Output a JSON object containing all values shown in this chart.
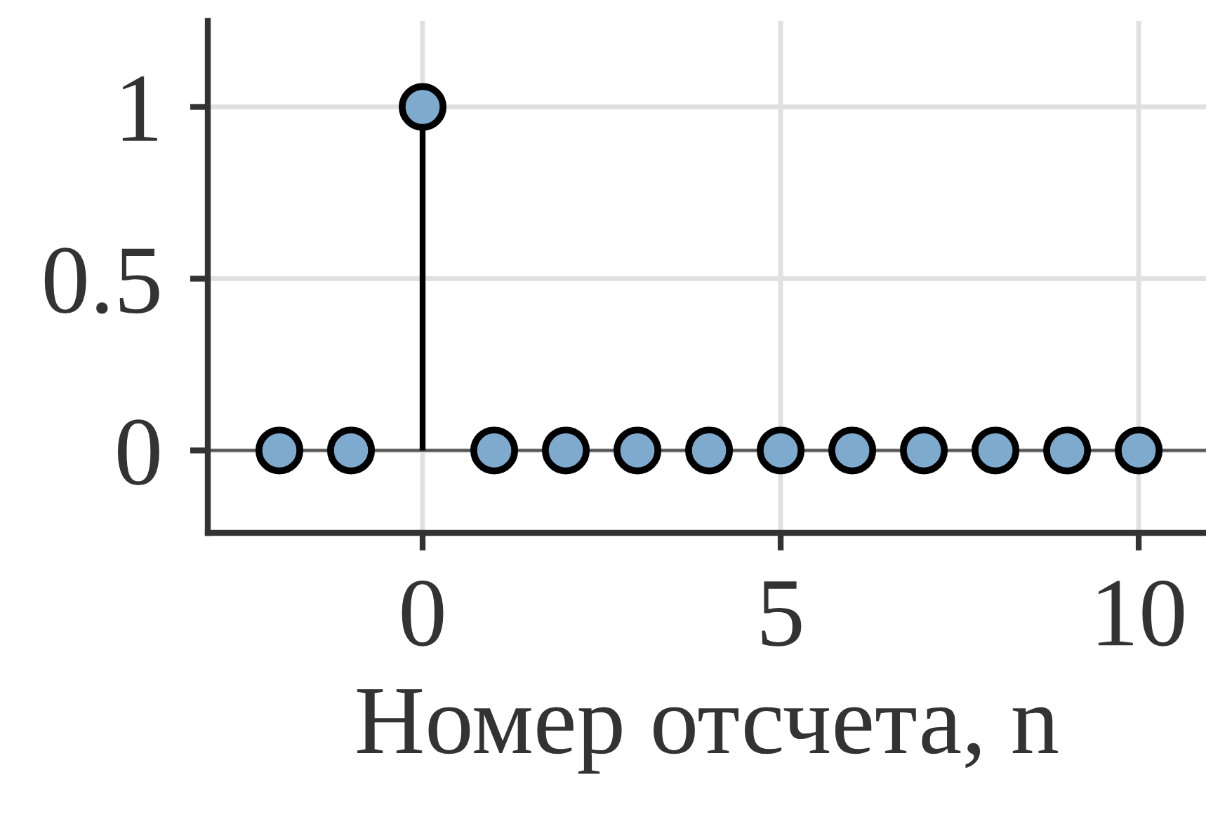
{
  "chart_data": {
    "type": "lollipop",
    "xlabel": "Номер отсчета, n",
    "x": [
      -2,
      -1,
      0,
      1,
      2,
      3,
      4,
      5,
      6,
      7,
      8,
      9,
      10
    ],
    "series": [
      {
        "color": "#7eaace",
        "values": [
          0,
          0,
          1,
          0,
          0,
          0,
          0,
          0,
          0,
          0,
          0,
          0,
          0
        ]
      }
    ],
    "xlim": [
      -3,
      10.94
    ],
    "xticks": [
      0,
      5,
      10
    ],
    "ylim": [
      -0.24,
      1.25
    ],
    "yticks": [
      0,
      {
        "value": 0.5,
        "label": "0.5"
      },
      1
    ],
    "ref_lines": [
      {
        "axis": "y",
        "value": 0,
        "color": "#555555"
      }
    ],
    "grid": true,
    "marker": "circle"
  }
}
